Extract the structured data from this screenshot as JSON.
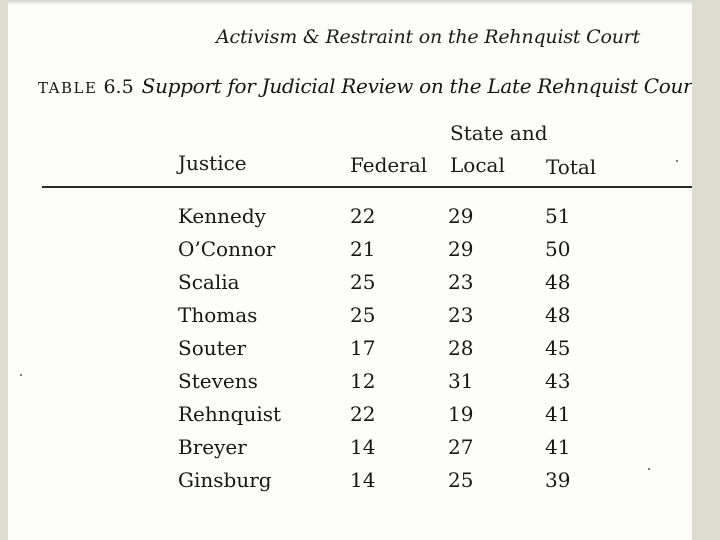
{
  "running_head": "Activism & Restraint on the Rehnquist Court",
  "caption": {
    "label": "TABLE",
    "number": "6.5",
    "title": "Support for Judicial Review on the Late Rehnquist Court*"
  },
  "columns": {
    "justice": "Justice",
    "federal": "Federal",
    "state_line1": "State and",
    "state_line2": "Local",
    "total": "Total"
  },
  "rows": [
    {
      "justice": "Kennedy",
      "federal": "22",
      "state_local": "29",
      "total": "51"
    },
    {
      "justice": "O’Connor",
      "federal": "21",
      "state_local": "29",
      "total": "50"
    },
    {
      "justice": "Scalia",
      "federal": "25",
      "state_local": "23",
      "total": "48"
    },
    {
      "justice": "Thomas",
      "federal": "25",
      "state_local": "23",
      "total": "48"
    },
    {
      "justice": "Souter",
      "federal": "17",
      "state_local": "28",
      "total": "45"
    },
    {
      "justice": "Stevens",
      "federal": "12",
      "state_local": "31",
      "total": "43"
    },
    {
      "justice": "Rehnquist",
      "federal": "22",
      "state_local": "19",
      "total": "41"
    },
    {
      "justice": "Breyer",
      "federal": "14",
      "state_local": "27",
      "total": "41"
    },
    {
      "justice": "Ginsburg",
      "federal": "14",
      "state_local": "25",
      "total": "39"
    }
  ]
}
